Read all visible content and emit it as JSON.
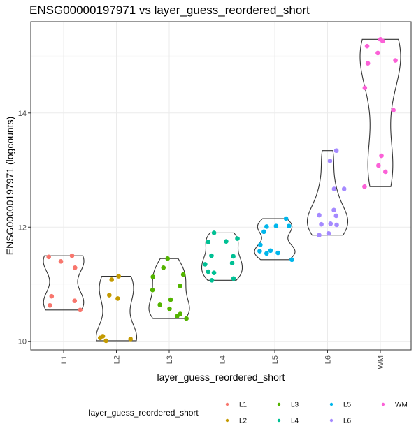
{
  "chart_data": {
    "type": "violin",
    "title": "ENSG00000197971 vs layer_guess_reordered_short",
    "xlabel": "layer_guess_reordered_short",
    "ylabel": "ENSG00000197971 (logcounts)",
    "ylim": [
      9.85,
      15.6
    ],
    "yticks": [
      10,
      12,
      14
    ],
    "grid": true,
    "legend": {
      "title": "layer_guess_reordered_short",
      "position": "bottom"
    },
    "categories": [
      "L1",
      "L2",
      "L3",
      "L4",
      "L5",
      "L6",
      "WM"
    ],
    "series": [
      {
        "name": "L1",
        "color": "#F8766D",
        "values": [
          11.5,
          11.48,
          11.4,
          11.29,
          10.79,
          10.71,
          10.63,
          10.55
        ]
      },
      {
        "name": "L2",
        "color": "#C49A00",
        "values": [
          11.14,
          11.08,
          10.81,
          10.75,
          10.09,
          10.06,
          10.04,
          10.01
        ]
      },
      {
        "name": "L3",
        "color": "#53B400",
        "values": [
          11.45,
          11.29,
          11.17,
          11.13,
          10.97,
          10.9,
          10.73,
          10.64,
          10.57,
          10.48,
          10.44,
          10.4
        ]
      },
      {
        "name": "L4",
        "color": "#00C094",
        "values": [
          11.9,
          11.8,
          11.75,
          11.74,
          11.5,
          11.49,
          11.37,
          11.35,
          11.22,
          11.2,
          11.1,
          11.07
        ]
      },
      {
        "name": "L5",
        "color": "#00B6EB",
        "values": [
          12.15,
          12.02,
          12.02,
          12.01,
          11.92,
          11.69,
          11.59,
          11.58,
          11.55,
          11.54,
          11.43
        ]
      },
      {
        "name": "L6",
        "color": "#A58AFF",
        "values": [
          13.34,
          13.16,
          12.67,
          12.67,
          12.3,
          12.21,
          12.2,
          12.06,
          12.05,
          12.04,
          11.89,
          11.86
        ]
      },
      {
        "name": "WM",
        "color": "#FB61D7",
        "values": [
          15.29,
          15.26,
          15.17,
          15.05,
          14.92,
          14.87,
          14.44,
          14.05,
          13.25,
          13.08,
          12.97,
          12.71
        ]
      }
    ]
  }
}
